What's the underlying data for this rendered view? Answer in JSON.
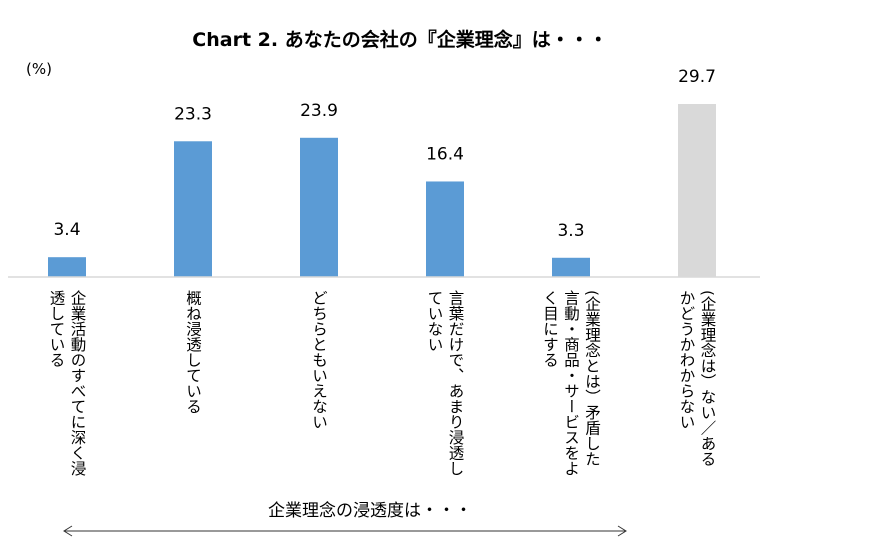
{
  "chart_data": {
    "type": "bar",
    "title": "Chart 2. あなたの会社の『企業理念』は・・・",
    "unit": "(%)",
    "categories": [
      [
        "企業活動のすべてに深く浸",
        "透している"
      ],
      [
        "概ね浸透している"
      ],
      [
        "どちらともいえない"
      ],
      [
        "言葉だけで、あまり浸透し",
        "ていない"
      ],
      [
        "(企業理念とは）矛盾した",
        "言動・商品・サービスをよ",
        "く目にする"
      ],
      [
        "(企業理念は）ない／ある",
        "かどうかわからない"
      ]
    ],
    "values": [
      3.4,
      23.3,
      23.9,
      16.4,
      3.3,
      29.7
    ],
    "value_labels": [
      "3.4",
      "23.3",
      "23.9",
      "16.4",
      "3.3",
      "29.7"
    ],
    "bar_colors": [
      "#5b9bd5",
      "#5b9bd5",
      "#5b9bd5",
      "#5b9bd5",
      "#5b9bd5",
      "#d9d9d9"
    ],
    "axis_color": "#d9d9d9",
    "footer_label": "企業理念の浸透度は・・・",
    "bracket_range": "categories 1-5",
    "ylim": [
      0,
      29.7
    ],
    "grid": false,
    "legend": "none"
  }
}
